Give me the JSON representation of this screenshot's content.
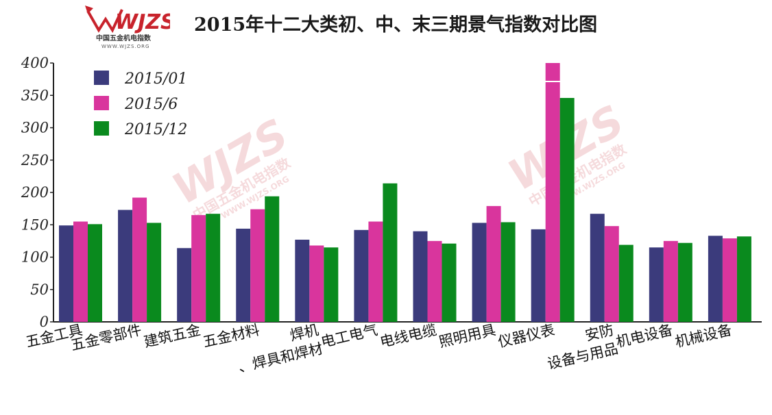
{
  "title": "2015年十二大类初、中、末三期景气指数对比图",
  "logo": {
    "wordmark": "WJZS",
    "name": "中国五金机电指数",
    "url": "WWW.WJZS.ORG"
  },
  "colors": {
    "series": [
      "#3b3b7c",
      "#d9359d",
      "#0a8a1e"
    ],
    "axis": "#222222"
  },
  "chart_data": {
    "type": "bar",
    "title": "2015年十二大类初、中、末三期景气指数对比图",
    "categories": [
      "五金工具",
      "五金零部件",
      "建筑五金",
      "五金材料",
      "焊机、焊具和焊材",
      "电工电气",
      "电线电缆",
      "照明用具",
      "仪器仪表",
      "安防设备与用品",
      "机电设备",
      "机械设备"
    ],
    "series": [
      {
        "name": "2015/01",
        "values": [
          149,
          173,
          114,
          144,
          127,
          142,
          140,
          153,
          143,
          167,
          115,
          133
        ]
      },
      {
        "name": "2015/6",
        "values": [
          155,
          192,
          165,
          174,
          118,
          155,
          125,
          179,
          400,
          148,
          125,
          129
        ]
      },
      {
        "name": "2015/12",
        "values": [
          151,
          153,
          167,
          194,
          115,
          214,
          121,
          154,
          346,
          119,
          122,
          132
        ]
      }
    ],
    "ylim": [
      0,
      400
    ],
    "yticks": [
      0,
      50,
      100,
      150,
      200,
      250,
      300,
      350,
      400
    ],
    "axis_break": {
      "series": "2015/6",
      "category": "仪器仪表"
    },
    "grid": false,
    "legend": "top-left",
    "xlabel": "",
    "ylabel": ""
  }
}
